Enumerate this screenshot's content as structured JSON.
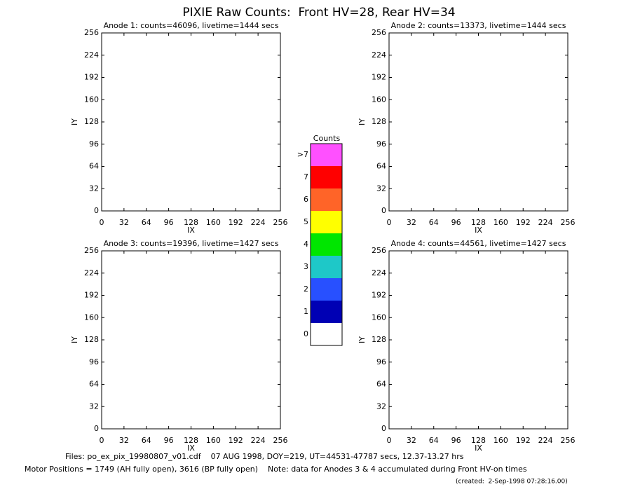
{
  "title": "PIXIE Raw Counts:  Front HV=28, Rear HV=34",
  "colorbar": {
    "title": "Counts",
    "labels": [
      "0",
      "1",
      "2",
      "3",
      "4",
      "5",
      "6",
      "7",
      ">7"
    ],
    "colors": [
      "#ffffff",
      "#0000b4",
      "#2850ff",
      "#1ec8c8",
      "#00e600",
      "#ffff00",
      "#ff6428",
      "#ff0000",
      "#ff50ff"
    ]
  },
  "footer": [
    "Files: po_ex_pix_19980807_v01.cdf    07 AUG 1998, DOY=219, UT=44531-47787 secs, 12.37-13.27 hrs",
    "Motor Positions = 1749 (AH fully open), 3616 (BP fully open)    Note: data for Anodes 3 & 4 accumulated during Front HV-on times",
    "(created:  2-Sep-1998 07:28:16.00)"
  ],
  "chart_data": [
    {
      "type": "heatmap",
      "title": "Anode 1: counts=46096, livetime=1444 secs",
      "xlabel": "IX",
      "ylabel": "IY",
      "xlim": [
        0,
        256
      ],
      "ylim": [
        0,
        256
      ],
      "xticks": [
        0,
        32,
        64,
        96,
        128,
        160,
        192,
        224,
        256
      ],
      "yticks": [
        0,
        32,
        64,
        96,
        128,
        160,
        192,
        224,
        256
      ]
    },
    {
      "type": "heatmap",
      "title": "Anode 2: counts=13373, livetime=1444 secs",
      "xlabel": "IX",
      "ylabel": "IY",
      "xlim": [
        0,
        256
      ],
      "ylim": [
        0,
        256
      ],
      "xticks": [
        0,
        32,
        64,
        96,
        128,
        160,
        192,
        224,
        256
      ],
      "yticks": [
        0,
        32,
        64,
        96,
        128,
        160,
        192,
        224,
        256
      ]
    },
    {
      "type": "heatmap",
      "title": "Anode 3: counts=19396, livetime=1427 secs",
      "xlabel": "IX",
      "ylabel": "IY",
      "xlim": [
        0,
        256
      ],
      "ylim": [
        0,
        256
      ],
      "xticks": [
        0,
        32,
        64,
        96,
        128,
        160,
        192,
        224,
        256
      ],
      "yticks": [
        0,
        32,
        64,
        96,
        128,
        160,
        192,
        224,
        256
      ]
    },
    {
      "type": "heatmap",
      "title": "Anode 4: counts=44561, livetime=1427 secs",
      "xlabel": "IX",
      "ylabel": "IY",
      "xlim": [
        0,
        256
      ],
      "ylim": [
        0,
        256
      ],
      "xticks": [
        0,
        32,
        64,
        96,
        128,
        160,
        192,
        224,
        256
      ],
      "yticks": [
        0,
        32,
        64,
        96,
        128,
        160,
        192,
        224,
        256
      ]
    }
  ]
}
